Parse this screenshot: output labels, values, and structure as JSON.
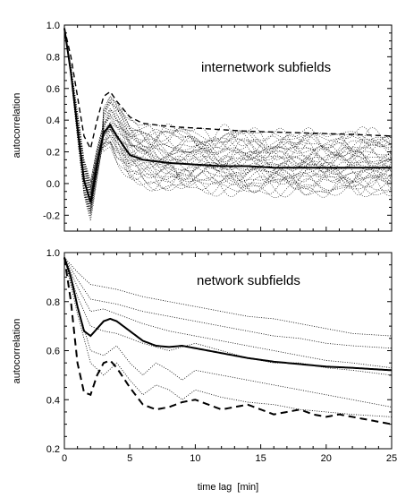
{
  "chart_data": [
    {
      "type": "line",
      "title": "internetwork subfields",
      "xlabel": "",
      "ylabel": "autocorrelation",
      "xlim": [
        0,
        25
      ],
      "ylim": [
        -0.3,
        1.0
      ],
      "yticks": [
        -0.2,
        0.0,
        0.2,
        0.4,
        0.6,
        0.8,
        1.0
      ],
      "ytick_labels": [
        "-0.2",
        "0.0",
        "0.2",
        "0.4",
        "0.6",
        "0.8",
        "1.0"
      ],
      "grid": false,
      "mean_series": {
        "style": "thick-solid",
        "x": [
          0,
          0.5,
          1,
          1.5,
          2,
          2.5,
          3,
          3.5,
          4,
          5,
          6,
          7,
          8,
          10,
          12,
          14,
          16,
          18,
          20,
          22,
          25
        ],
        "y": [
          0.98,
          0.7,
          0.35,
          0.02,
          -0.12,
          0.12,
          0.32,
          0.37,
          0.3,
          0.18,
          0.15,
          0.14,
          0.13,
          0.12,
          0.11,
          0.11,
          0.1,
          0.1,
          0.1,
          0.1,
          0.1
        ]
      },
      "dashed_series": {
        "style": "dashed",
        "x": [
          0,
          0.5,
          1,
          1.5,
          2,
          2.5,
          3,
          3.5,
          4,
          5,
          6,
          8,
          10,
          14,
          18,
          22,
          25
        ],
        "y": [
          0.98,
          0.8,
          0.55,
          0.3,
          0.22,
          0.4,
          0.55,
          0.58,
          0.52,
          0.42,
          0.38,
          0.36,
          0.35,
          0.33,
          0.32,
          0.31,
          0.3
        ]
      },
      "subfield_count": 36
    },
    {
      "type": "line",
      "title": "network subfields",
      "xlabel": "time lag  [min]",
      "ylabel": "autocorrelation",
      "xlim": [
        0,
        25
      ],
      "ylim": [
        0.2,
        1.0
      ],
      "xticks": [
        0,
        5,
        10,
        15,
        20,
        25
      ],
      "xtick_labels": [
        "0",
        "5",
        "10",
        "15",
        "20",
        "25"
      ],
      "yticks": [
        0.2,
        0.4,
        0.6,
        0.8,
        1.0
      ],
      "ytick_labels": [
        "0.2",
        "0.4",
        "0.6",
        "0.8",
        "1.0"
      ],
      "grid": false,
      "series": [
        {
          "style": "dotted",
          "x": [
            0,
            1,
            2,
            3,
            4,
            6,
            8,
            10,
            12,
            14,
            16,
            18,
            20,
            22,
            25
          ],
          "y": [
            0.98,
            0.92,
            0.87,
            0.86,
            0.85,
            0.82,
            0.8,
            0.78,
            0.76,
            0.74,
            0.73,
            0.71,
            0.69,
            0.67,
            0.66
          ]
        },
        {
          "style": "dotted",
          "x": [
            0,
            1,
            2,
            3,
            4,
            6,
            8,
            10,
            12,
            14,
            16,
            18,
            20,
            22,
            25
          ],
          "y": [
            0.98,
            0.89,
            0.81,
            0.8,
            0.79,
            0.76,
            0.74,
            0.72,
            0.7,
            0.68,
            0.66,
            0.65,
            0.63,
            0.62,
            0.61
          ]
        },
        {
          "style": "dotted",
          "x": [
            0,
            1,
            2,
            3,
            4,
            6,
            8,
            10,
            12,
            14,
            16,
            18,
            20,
            22,
            25
          ],
          "y": [
            0.98,
            0.86,
            0.76,
            0.77,
            0.75,
            0.71,
            0.68,
            0.66,
            0.64,
            0.62,
            0.6,
            0.58,
            0.56,
            0.55,
            0.53
          ]
        },
        {
          "style": "thick-solid",
          "x": [
            0,
            0.5,
            1,
            1.5,
            2,
            2.5,
            3,
            3.5,
            4,
            5,
            6,
            7,
            8,
            9,
            10,
            12,
            14,
            16,
            18,
            20,
            22,
            25
          ],
          "y": [
            0.98,
            0.9,
            0.78,
            0.68,
            0.66,
            0.69,
            0.72,
            0.73,
            0.72,
            0.68,
            0.64,
            0.62,
            0.615,
            0.62,
            0.61,
            0.59,
            0.57,
            0.555,
            0.545,
            0.535,
            0.53,
            0.52
          ]
        },
        {
          "style": "dotted",
          "x": [
            0,
            1,
            2,
            3,
            4,
            6,
            8,
            10,
            12,
            14,
            16,
            18,
            20,
            22,
            25
          ],
          "y": [
            0.98,
            0.82,
            0.7,
            0.68,
            0.67,
            0.63,
            0.6,
            0.63,
            0.6,
            0.57,
            0.55,
            0.55,
            0.53,
            0.52,
            0.5
          ]
        },
        {
          "style": "dotted",
          "x": [
            0,
            1,
            2,
            3,
            4,
            5,
            6,
            7,
            8,
            9,
            10,
            12,
            14,
            16,
            18,
            20,
            22,
            25
          ],
          "y": [
            0.98,
            0.78,
            0.6,
            0.58,
            0.62,
            0.55,
            0.5,
            0.55,
            0.52,
            0.48,
            0.52,
            0.5,
            0.48,
            0.46,
            0.44,
            0.42,
            0.4,
            0.37
          ]
        },
        {
          "style": "dotted",
          "x": [
            0,
            1,
            2,
            3,
            4,
            5,
            6,
            7,
            8,
            9,
            10,
            12,
            14,
            16,
            18,
            20,
            22,
            25
          ],
          "y": [
            0.98,
            0.75,
            0.55,
            0.5,
            0.55,
            0.48,
            0.42,
            0.46,
            0.44,
            0.4,
            0.44,
            0.41,
            0.39,
            0.38,
            0.36,
            0.35,
            0.34,
            0.33
          ]
        },
        {
          "style": "thick-dashed",
          "x": [
            0,
            0.5,
            1,
            1.5,
            2,
            2.5,
            3,
            3.5,
            4,
            5,
            6,
            7,
            8,
            9,
            10,
            11,
            12,
            13,
            14,
            15,
            16,
            17,
            18,
            19,
            20,
            21,
            22,
            23,
            24,
            25
          ],
          "y": [
            0.98,
            0.8,
            0.55,
            0.43,
            0.42,
            0.5,
            0.55,
            0.56,
            0.53,
            0.45,
            0.38,
            0.36,
            0.37,
            0.39,
            0.4,
            0.38,
            0.36,
            0.37,
            0.38,
            0.36,
            0.34,
            0.35,
            0.36,
            0.34,
            0.33,
            0.34,
            0.33,
            0.32,
            0.31,
            0.3
          ]
        }
      ]
    }
  ]
}
